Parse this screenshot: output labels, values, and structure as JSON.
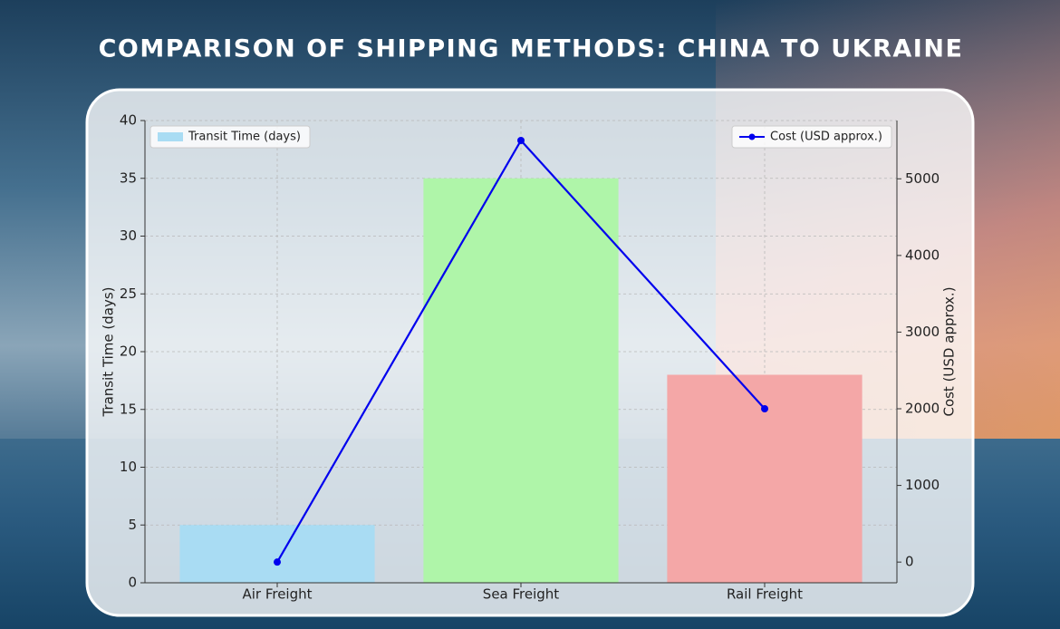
{
  "chart_data": {
    "type": "combo",
    "title": "COMPARISON OF SHIPPING METHODS: CHINA TO UKRAINE",
    "categories": [
      "Air Freight",
      "Sea Freight",
      "Rail Freight"
    ],
    "ylabel": "Transit Time (days)",
    "y2label": "Cost (USD approx.)",
    "ylim": [
      0,
      40
    ],
    "yticks": [
      0,
      5,
      10,
      15,
      20,
      25,
      30,
      35,
      40
    ],
    "y2lim": [
      -270,
      5760
    ],
    "y2ticks": [
      0,
      1000,
      2000,
      3000,
      4000,
      5000
    ],
    "grid": true,
    "series": [
      {
        "name": "Transit Time (days)",
        "kind": "bar",
        "colors": [
          "#a9dcf3",
          "#aff5a9",
          "#f4a7a7"
        ],
        "values": [
          5,
          35,
          18
        ],
        "legend": "upper left"
      },
      {
        "name": "Cost (USD approx.)",
        "kind": "line",
        "axis": "y2",
        "color": "#0000ee",
        "values": [
          0,
          5500,
          2000
        ],
        "legend": "upper right"
      }
    ]
  }
}
